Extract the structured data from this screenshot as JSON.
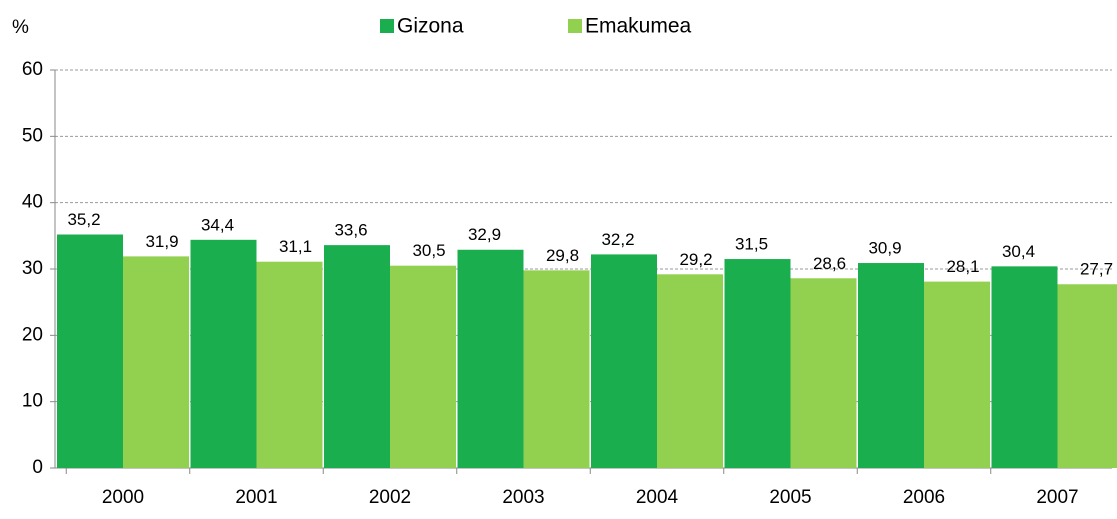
{
  "chart_data": {
    "type": "bar",
    "y_label": "%",
    "categories": [
      "2000",
      "2001",
      "2002",
      "2003",
      "2004",
      "2005",
      "2006",
      "2007"
    ],
    "series": [
      {
        "name": "Gizona",
        "color": "#1bae4f",
        "values": [
          35.2,
          34.4,
          33.6,
          32.9,
          32.2,
          31.5,
          30.9,
          30.4
        ],
        "value_labels": [
          "35,2",
          "34,4",
          "33,6",
          "32,9",
          "32,2",
          "31,5",
          "30,9",
          "30,4"
        ]
      },
      {
        "name": "Emakumea",
        "color": "#92d050",
        "values": [
          31.9,
          31.1,
          30.5,
          29.8,
          29.2,
          28.6,
          28.1,
          27.7
        ],
        "value_labels": [
          "31,9",
          "31,1",
          "30,5",
          "29,8",
          "29,2",
          "28,6",
          "28,1",
          "27,7"
        ]
      }
    ],
    "ylim": [
      0,
      60
    ],
    "yticks": [
      0,
      10,
      20,
      30,
      40,
      50,
      60
    ],
    "grid": true,
    "legend": "top"
  }
}
